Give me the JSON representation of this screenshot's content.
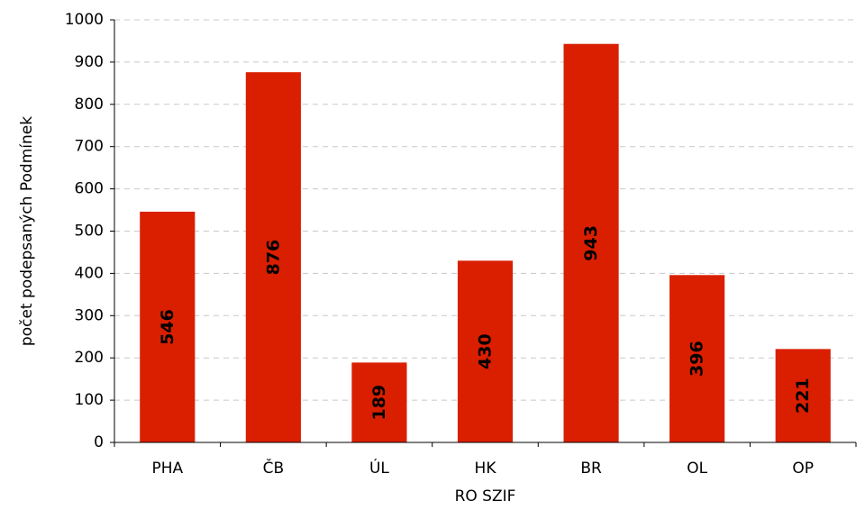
{
  "chart_data": {
    "type": "bar",
    "categories": [
      "PHA",
      "ČB",
      "ÚL",
      "HK",
      "BR",
      "OL",
      "OP"
    ],
    "values": [
      546,
      876,
      189,
      430,
      943,
      396,
      221
    ],
    "data_labels": [
      "546",
      "876",
      "189",
      "430",
      "943",
      "396",
      "221"
    ],
    "title": "",
    "xlabel": "RO SZIF",
    "ylabel": "počet podepsaných Podmínek",
    "ylim": [
      0,
      1000
    ],
    "yticks": [
      0,
      100,
      200,
      300,
      400,
      500,
      600,
      700,
      800,
      900,
      1000
    ],
    "ytick_labels": [
      "0",
      "100",
      "200",
      "300",
      "400",
      "500",
      "600",
      "700",
      "800",
      "900",
      "1000"
    ],
    "grid": true,
    "legend": "none",
    "bar_color": "#d91f00"
  }
}
